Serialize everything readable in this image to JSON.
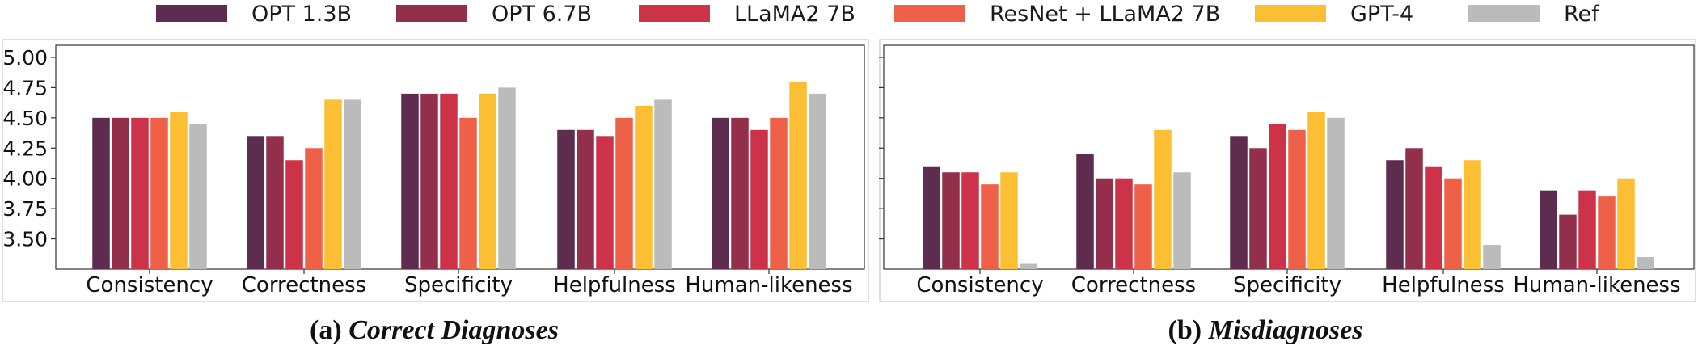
{
  "legend": [
    {
      "label": "OPT 1.3B",
      "color": "#5e2c4e"
    },
    {
      "label": "OPT 6.7B",
      "color": "#932f4b"
    },
    {
      "label": "LLaMA2 7B",
      "color": "#cc3348"
    },
    {
      "label": "ResNet + LLaMA2 7B",
      "color": "#ef6048"
    },
    {
      "label": "GPT-4",
      "color": "#fcbf33"
    },
    {
      "label": "Ref",
      "color": "#bbbbbb"
    }
  ],
  "captions": [
    {
      "prefix": "(a)",
      "title": "Correct Diagnoses"
    },
    {
      "prefix": "(b)",
      "title": "Misdiagnoses"
    }
  ],
  "chart_data": [
    {
      "type": "bar",
      "title": "Correct Diagnoses",
      "categories": [
        "Consistency",
        "Correctness",
        "Specificity",
        "Helpfulness",
        "Human-likeness"
      ],
      "ylim": [
        3.25,
        5.1
      ],
      "yticks": [
        "3.50",
        "3.75",
        "4.00",
        "4.25",
        "4.50",
        "4.75",
        "5.00"
      ],
      "grid": false,
      "series": [
        {
          "name": "OPT 1.3B",
          "values": [
            4.5,
            4.35,
            4.7,
            4.4,
            4.5
          ]
        },
        {
          "name": "OPT 6.7B",
          "values": [
            4.5,
            4.35,
            4.7,
            4.4,
            4.5
          ]
        },
        {
          "name": "LLaMA2 7B",
          "values": [
            4.5,
            4.15,
            4.7,
            4.35,
            4.4
          ]
        },
        {
          "name": "ResNet + LLaMA2 7B",
          "values": [
            4.5,
            4.25,
            4.5,
            4.5,
            4.5
          ]
        },
        {
          "name": "GPT-4",
          "values": [
            4.55,
            4.65,
            4.7,
            4.6,
            4.8
          ]
        },
        {
          "name": "Ref",
          "values": [
            4.45,
            4.65,
            4.75,
            4.65,
            4.7
          ]
        }
      ]
    },
    {
      "type": "bar",
      "title": "Misdiagnoses",
      "categories": [
        "Consistency",
        "Correctness",
        "Specificity",
        "Helpfulness",
        "Human-likeness"
      ],
      "ylim": [
        3.25,
        5.1
      ],
      "yticks": [],
      "grid": false,
      "series": [
        {
          "name": "OPT 1.3B",
          "values": [
            4.1,
            4.2,
            4.35,
            4.15,
            3.9
          ]
        },
        {
          "name": "OPT 6.7B",
          "values": [
            4.05,
            4.0,
            4.25,
            4.25,
            3.7
          ]
        },
        {
          "name": "LLaMA2 7B",
          "values": [
            4.05,
            4.0,
            4.45,
            4.1,
            3.9
          ]
        },
        {
          "name": "ResNet + LLaMA2 7B",
          "values": [
            3.95,
            3.95,
            4.4,
            4.0,
            3.85
          ]
        },
        {
          "name": "GPT-4",
          "values": [
            4.05,
            4.4,
            4.55,
            4.15,
            4.0
          ]
        },
        {
          "name": "Ref",
          "values": [
            3.3,
            4.05,
            4.5,
            3.45,
            3.35
          ]
        }
      ]
    }
  ]
}
